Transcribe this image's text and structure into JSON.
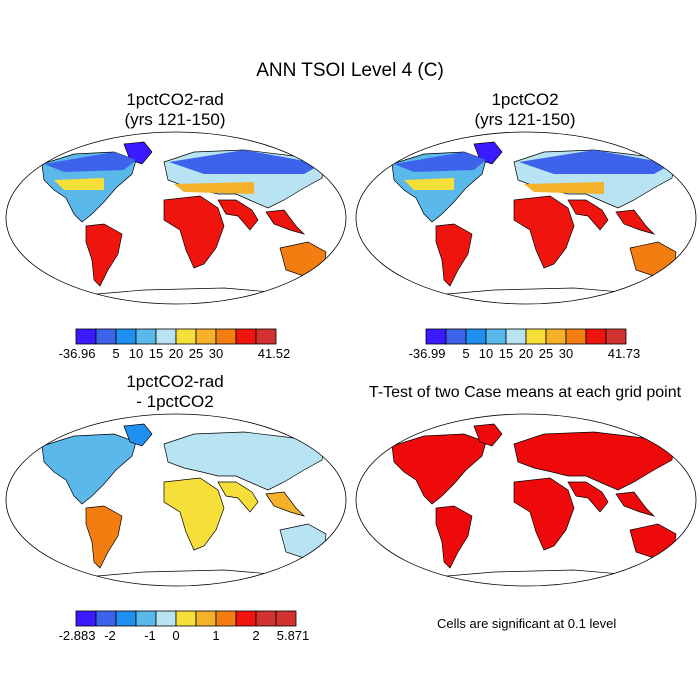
{
  "title": "ANN TSOI Level 4 (C)",
  "panels": [
    {
      "title_line1": "1pctCO2-rad",
      "title_line2": "(yrs 121-150)",
      "colorbar": {
        "colors": [
          "#3a1aff",
          "#3d63eb",
          "#1e90ef",
          "#5ab8ea",
          "#b8e3f2",
          "#f7df3a",
          "#f6b12a",
          "#f47d12",
          "#f0140e",
          "#d33330"
        ],
        "labels": [
          "-36.96",
          "5",
          "10",
          "15",
          "20",
          "25",
          "30",
          "41.52"
        ]
      }
    },
    {
      "title_line1": "1pctCO2",
      "title_line2": "(yrs 121-150)",
      "colorbar": {
        "colors": [
          "#3a1aff",
          "#3d63eb",
          "#1e90ef",
          "#5ab8ea",
          "#b8e3f2",
          "#f7df3a",
          "#f6b12a",
          "#f47d12",
          "#f0140e",
          "#d33330"
        ],
        "labels": [
          "-36.99",
          "5",
          "10",
          "15",
          "20",
          "25",
          "30",
          "41.73"
        ]
      }
    },
    {
      "title_line1": "1pctCO2-rad",
      "title_line2": "- 1pctCO2",
      "colorbar": {
        "colors": [
          "#3a1aff",
          "#3d63eb",
          "#1e90ef",
          "#5ab8ea",
          "#b8e3f2",
          "#f7df3a",
          "#f6b12a",
          "#f47d12",
          "#f0140e",
          "#d33330",
          "#d33330"
        ],
        "labels": [
          "-2.883",
          "-2",
          "-1",
          "0",
          "1",
          "2",
          "5.871"
        ]
      }
    },
    {
      "title_line1": "T-Test of two Case means at each grid point",
      "note": "Cells are significant at 0.1 level",
      "colors": {
        "significant": "#ee0a0a"
      }
    }
  ]
}
